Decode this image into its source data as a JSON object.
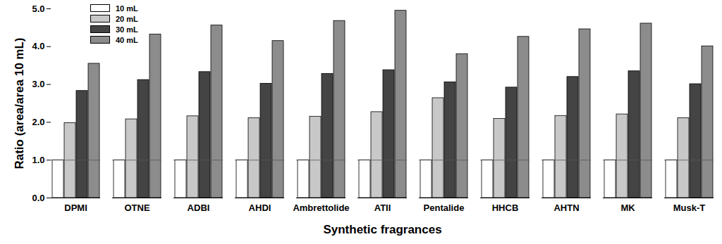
{
  "chart_data": {
    "type": "bar",
    "xlabel": "Synthetic fragrances",
    "ylabel": "Ratio (area/area 10 mL)",
    "categories": [
      "DPMI",
      "OTNE",
      "ADBI",
      "AHDI",
      "Ambrettolide",
      "ATII",
      "Pentalide",
      "HHCB",
      "AHTN",
      "MK",
      "Musk-T"
    ],
    "series": [
      {
        "name": "10 mL",
        "color": "#ffffff",
        "values": [
          1.0,
          1.0,
          1.0,
          1.0,
          1.0,
          1.0,
          1.0,
          1.0,
          1.0,
          1.0,
          1.0
        ]
      },
      {
        "name": "20 mL",
        "color": "#c8c8c8",
        "values": [
          1.98,
          2.08,
          2.16,
          2.11,
          2.15,
          2.27,
          2.64,
          2.09,
          2.17,
          2.21,
          2.11
        ]
      },
      {
        "name": "30 mL",
        "color": "#444444",
        "values": [
          2.83,
          3.12,
          3.33,
          3.02,
          3.28,
          3.38,
          3.06,
          2.92,
          3.2,
          3.35,
          3.01
        ]
      },
      {
        "name": "40 mL",
        "color": "#8c8c8c",
        "values": [
          3.55,
          4.32,
          4.56,
          4.15,
          4.68,
          4.95,
          3.8,
          4.26,
          4.46,
          4.61,
          4.01
        ]
      }
    ],
    "ylim": [
      0,
      5
    ],
    "yticks": [
      {
        "value": 0,
        "label": "0.0"
      },
      {
        "value": 1,
        "label": "1.0"
      },
      {
        "value": 2,
        "label": "2.0"
      },
      {
        "value": 3,
        "label": "3.0"
      },
      {
        "value": 4,
        "label": "4.0"
      },
      {
        "value": 5,
        "label": "5.0"
      }
    ],
    "reference_line": 1,
    "legend": "top-left",
    "grid": false
  }
}
